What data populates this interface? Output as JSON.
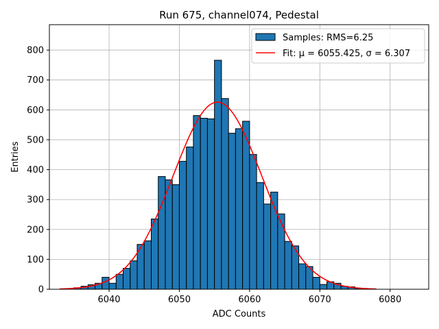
{
  "chart_data": {
    "type": "bar",
    "title": "Run 675, channel074, Pedestal",
    "xlabel": "ADC Counts",
    "ylabel": "Entries",
    "xlim": [
      6031.5,
      6085.5
    ],
    "ylim": [
      0,
      885
    ],
    "xticks": [
      6040,
      6050,
      6060,
      6070,
      6080
    ],
    "yticks": [
      0,
      100,
      200,
      300,
      400,
      500,
      600,
      700,
      800
    ],
    "grid": true,
    "legend_position": "top-right",
    "histogram": {
      "name": "Samples: RMS=6.25",
      "bin_width": 1,
      "bin_starts": [
        6033,
        6034,
        6035,
        6036,
        6037,
        6038,
        6039,
        6040,
        6041,
        6042,
        6043,
        6044,
        6045,
        6046,
        6047,
        6048,
        6049,
        6050,
        6051,
        6052,
        6053,
        6054,
        6055,
        6056,
        6057,
        6058,
        6059,
        6060,
        6061,
        6062,
        6063,
        6064,
        6065,
        6066,
        6067,
        6068,
        6069,
        6070,
        6071,
        6072,
        6073,
        6074,
        6075,
        6076,
        6077
      ],
      "counts": [
        1,
        1,
        5,
        10,
        15,
        20,
        40,
        20,
        50,
        70,
        95,
        150,
        162,
        235,
        377,
        366,
        350,
        428,
        476,
        581,
        572,
        570,
        766,
        638,
        522,
        537,
        562,
        451,
        357,
        285,
        325,
        252,
        160,
        145,
        85,
        76,
        40,
        16,
        25,
        20,
        10,
        8,
        3,
        1,
        1
      ],
      "color": "#1f77b4",
      "edge_color": "#000000"
    },
    "fit": {
      "name": "Fit: μ = 6055.425, σ = 6.307",
      "mu": 6055.425,
      "sigma": 6.307,
      "amplitude": 626,
      "x_range": [
        6033,
        6078
      ],
      "color": "#ff0000"
    }
  }
}
